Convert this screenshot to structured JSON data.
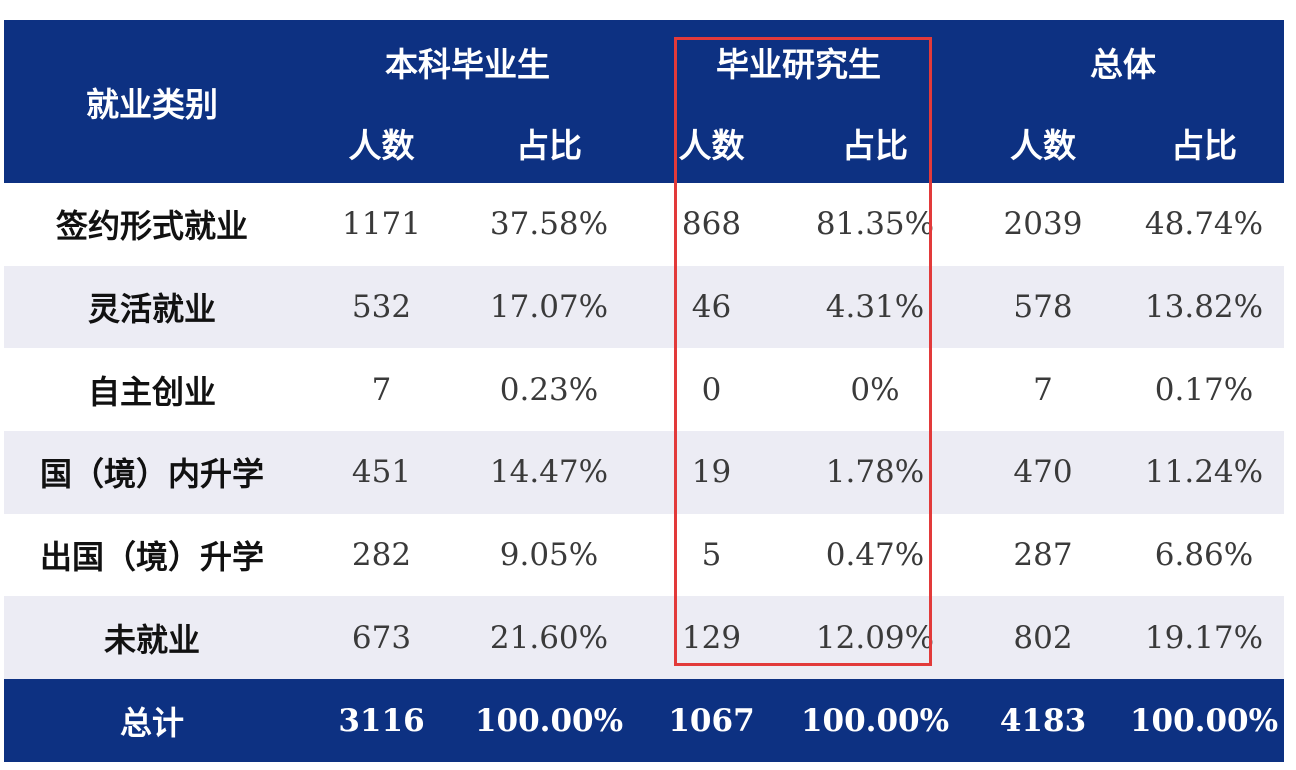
{
  "table": {
    "header": {
      "category": "就业类别",
      "groups": [
        "本科毕业生",
        "毕业研究生",
        "总体"
      ],
      "sub": [
        "人数",
        "占比",
        "人数",
        "占比",
        "人数",
        "占比"
      ]
    },
    "rows": [
      {
        "category": "签约形式就业",
        "values": [
          "1171",
          "37.58%",
          "868",
          "81.35%",
          "2039",
          "48.74%"
        ]
      },
      {
        "category": "灵活就业",
        "values": [
          "532",
          "17.07%",
          "46",
          "4.31%",
          "578",
          "13.82%"
        ]
      },
      {
        "category": "自主创业",
        "values": [
          "7",
          "0.23%",
          "0",
          "0%",
          "7",
          "0.17%"
        ]
      },
      {
        "category": "国（境）内升学",
        "values": [
          "451",
          "14.47%",
          "19",
          "1.78%",
          "470",
          "11.24%"
        ]
      },
      {
        "category": "出国（境）升学",
        "values": [
          "282",
          "9.05%",
          "5",
          "0.47%",
          "287",
          "6.86%"
        ]
      },
      {
        "category": "未就业",
        "values": [
          "673",
          "21.60%",
          "129",
          "12.09%",
          "802",
          "19.17%"
        ]
      }
    ],
    "total": {
      "category": "总计",
      "values": [
        "3116",
        "100.00%",
        "1067",
        "100.00%",
        "4183",
        "100.00%"
      ]
    }
  },
  "colors": {
    "header_bg": "#0d3182",
    "stripe_bg": "#ececf4",
    "highlight_border": "#e23a3a"
  }
}
